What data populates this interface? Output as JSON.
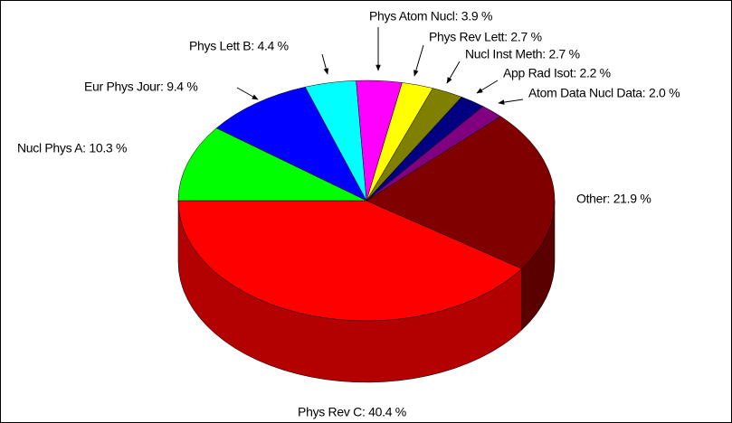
{
  "chart_data": {
    "type": "pie3d",
    "labels": [
      "Phys Rev C: 40.4 %",
      "Other: 21.9 %",
      "Atom Data Nucl Data: 2.0 %",
      "App Rad Isot: 2.2 %",
      "Nucl Inst Meth: 2.7 %",
      "Phys Rev Lett: 2.7 %",
      "Phys Atom Nucl: 3.9 %",
      "Phys Lett B: 4.4 %",
      "Eur Phys Jour: 9.4 %",
      "Nucl Phys A: 10.3 %"
    ],
    "values": [
      40.4,
      21.9,
      2.0,
      2.2,
      2.7,
      2.7,
      3.9,
      4.4,
      9.4,
      10.3
    ],
    "colors": [
      "#ff0000",
      "#800000",
      "#800080",
      "#000080",
      "#808000",
      "#ffff00",
      "#ff00ff",
      "#00ffff",
      "#0000ff",
      "#00ff00"
    ]
  }
}
